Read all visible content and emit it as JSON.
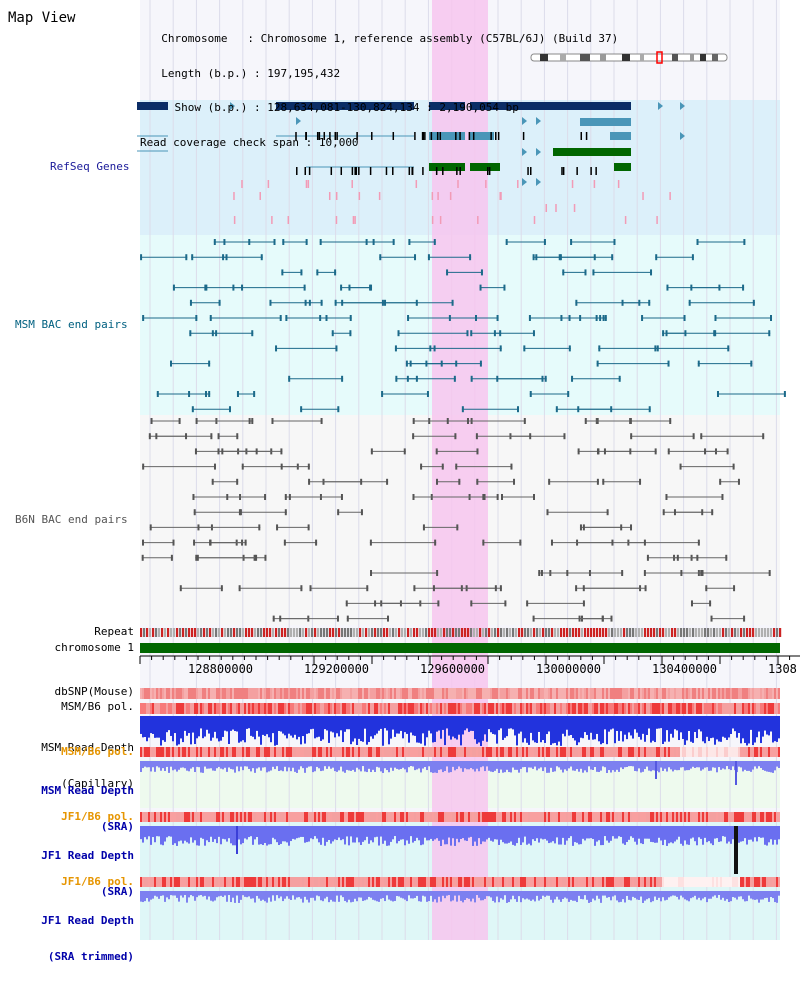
{
  "view_title": "Map View",
  "info": {
    "chromosome_key": "  Chromosome",
    "chromosome_val": ": Chromosome 1, reference assembly (C57BL/6J) (Build 37)",
    "length_key": "  Length (b.p.)",
    "length_val": ": 197,195,432",
    "show_key": "    Show (b.p.)",
    "show_val": ": 128,634,081-130,824,134 : 2,190,054 bp",
    "span_key": "Read coverage check span",
    "span_val": ": 10,000"
  },
  "tracks": {
    "refseq": "RefSeq Genes",
    "msm_bac": "MSM BAC end pairs",
    "b6n_bac": "B6N BAC end pairs",
    "repeat": "Repeat",
    "chromosome": "chromosome 1",
    "dbsnp": "dbSNP(Mouse)",
    "msm_b6_pol_1": "MSM/B6 pol.",
    "msm_depth_cap_1": "MSM Read Depth",
    "msm_depth_cap_2": "(Capillary)",
    "msm_b6_pol_2": "MSM/B6 pol.",
    "msm_depth_sra_1": "MSM Read Depth",
    "msm_depth_sra_2": "(SRA)",
    "jf1_b6_pol_1": "JF1/B6 pol.",
    "jf1_depth_1": "JF1 Read Depth",
    "jf1_depth_2": "(SRA)",
    "jf1_b6_pol_2": "JF1/B6 pol.",
    "jf1_trim_1": "JF1 Read Depth",
    "jf1_trim_2": "(SRA trimmed)"
  },
  "axis_ticks": [
    "128800000",
    "129200000",
    "129600000",
    "130000000",
    "130400000",
    "1308"
  ],
  "colors": {
    "refseq_label": "#1a1a99",
    "msm_label": "#006080",
    "pol_label": "#e69500",
    "depth_label": "#0000aa",
    "highlight": "#f7c6ef",
    "gene_dark": "#0b2d66",
    "gene_teal": "#4a96b8",
    "gene_green": "#006600",
    "chromosome_bar": "#006600"
  }
}
